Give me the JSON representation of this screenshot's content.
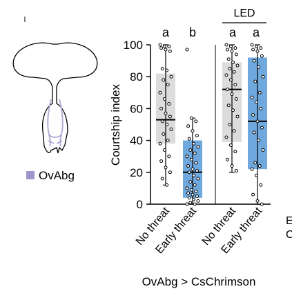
{
  "colors": {
    "no_threat": "#dcdcdc",
    "early_threat": "#6fa8dc",
    "brain": "#9b95c9",
    "neuron": "#b3aed9",
    "legend_swatch": "#9d97cc",
    "axis": "#000000"
  },
  "illustration": {
    "icon": "fly-brain-vnc-outline-icon",
    "legend_label": "OvAbg"
  },
  "chart_data": {
    "type": "box",
    "ylabel": "Courtship index",
    "xlabel": "OvAbg > CsChrimson",
    "ylim": [
      0,
      100
    ],
    "yticks": [
      "0",
      "20",
      "40",
      "60",
      "80",
      "100"
    ],
    "categories": [
      "No threat",
      "Early threat",
      "No threat",
      "Early threat"
    ],
    "led_label": "LED",
    "led_groups": [
      3,
      4
    ],
    "significance_letters": [
      "a",
      "b",
      "a",
      "a"
    ],
    "boxes": [
      {
        "category": "No threat",
        "min": 12,
        "q1": 38,
        "median": 53,
        "q3": 82,
        "max": 100,
        "points": [
          100,
          99,
          99,
          98,
          97,
          96,
          85,
          84,
          80,
          78,
          75,
          70,
          66,
          63,
          60,
          57,
          55,
          52,
          50,
          47,
          44,
          40,
          38,
          34,
          30,
          27,
          23,
          20,
          16,
          12
        ]
      },
      {
        "category": "Early threat",
        "min": 0,
        "q1": 4,
        "median": 20,
        "q3": 40,
        "max": 54,
        "points": [
          97,
          54,
          52,
          49,
          46,
          43,
          41,
          38,
          36,
          34,
          32,
          30,
          28,
          26,
          24,
          22,
          21,
          20,
          18,
          16,
          14,
          12,
          10,
          9,
          8,
          7,
          6,
          5,
          4,
          3,
          2,
          1,
          0,
          0
        ]
      },
      {
        "category": "No threat",
        "min": 20,
        "q1": 39,
        "median": 72,
        "q3": 89,
        "max": 100,
        "points": [
          100,
          99,
          98,
          97,
          96,
          94,
          91,
          89,
          87,
          85,
          83,
          81,
          78,
          75,
          72,
          69,
          66,
          62,
          59,
          55,
          50,
          46,
          42,
          37,
          33,
          28,
          24,
          21
        ]
      },
      {
        "category": "Early threat",
        "min": 0,
        "q1": 22,
        "median": 52,
        "q3": 92,
        "max": 100,
        "points": [
          100,
          99,
          98,
          97,
          96,
          93,
          90,
          86,
          80,
          77,
          70,
          67,
          64,
          60,
          56,
          52,
          48,
          45,
          40,
          34,
          26,
          24,
          22,
          18,
          12,
          6,
          2,
          0
        ]
      }
    ]
  },
  "side_text": [
    "E",
    "C"
  ]
}
